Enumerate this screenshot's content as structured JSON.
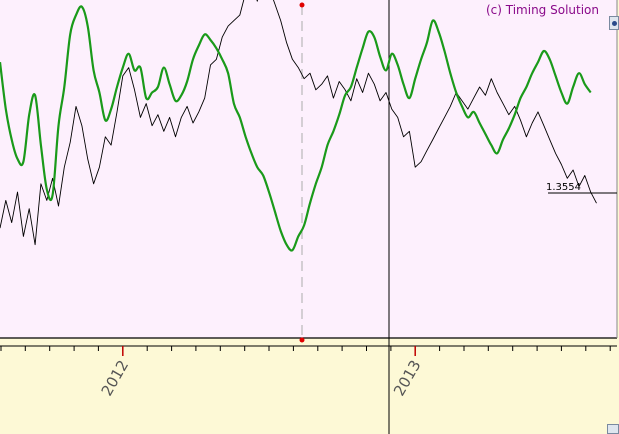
{
  "watermark": "(c) Timing Solution",
  "price_marker": "1.3554",
  "icons": [
    "settings-icon",
    "scroll-corner-icon"
  ],
  "colors": {
    "plot_background": "#fdf0fd",
    "axis_background": "#fdf9d6",
    "price_line": "#000000",
    "model_line": "#1a9a1a",
    "accent_marker": "#e00000"
  },
  "chart_data": {
    "type": "line",
    "title": "",
    "xlabel": "",
    "ylabel": "",
    "x_tick_labels": [
      "2012",
      "2013"
    ],
    "x_range": [
      2011.58,
      2013.69
    ],
    "grid": false,
    "legend": "none",
    "series": [
      {
        "key": "price",
        "points": [
          [
            2011.58,
            0.39
          ],
          [
            2011.6,
            0.49
          ],
          [
            2011.62,
            0.41
          ],
          [
            2011.64,
            0.52
          ],
          [
            2011.66,
            0.36
          ],
          [
            2011.68,
            0.46
          ],
          [
            2011.7,
            0.33
          ],
          [
            2011.72,
            0.55
          ],
          [
            2011.74,
            0.49
          ],
          [
            2011.76,
            0.57
          ],
          [
            2011.78,
            0.47
          ],
          [
            2011.8,
            0.61
          ],
          [
            2011.82,
            0.7
          ],
          [
            2011.84,
            0.83
          ],
          [
            2011.86,
            0.76
          ],
          [
            2011.88,
            0.64
          ],
          [
            2011.9,
            0.55
          ],
          [
            2011.92,
            0.61
          ],
          [
            2011.94,
            0.72
          ],
          [
            2011.96,
            0.69
          ],
          [
            2011.98,
            0.81
          ],
          [
            2012.0,
            0.94
          ],
          [
            2012.02,
            0.97
          ],
          [
            2012.04,
            0.89
          ],
          [
            2012.06,
            0.79
          ],
          [
            2012.08,
            0.84
          ],
          [
            2012.1,
            0.76
          ],
          [
            2012.12,
            0.8
          ],
          [
            2012.14,
            0.74
          ],
          [
            2012.16,
            0.79
          ],
          [
            2012.18,
            0.72
          ],
          [
            2012.2,
            0.79
          ],
          [
            2012.22,
            0.83
          ],
          [
            2012.24,
            0.77
          ],
          [
            2012.26,
            0.81
          ],
          [
            2012.28,
            0.86
          ],
          [
            2012.3,
            0.98
          ],
          [
            2012.32,
            1.0
          ],
          [
            2012.34,
            1.08
          ],
          [
            2012.36,
            1.12
          ],
          [
            2012.38,
            1.14
          ],
          [
            2012.4,
            1.16
          ],
          [
            2012.42,
            1.24
          ],
          [
            2012.44,
            1.28
          ],
          [
            2012.46,
            1.21
          ],
          [
            2012.48,
            1.31
          ],
          [
            2012.5,
            1.26
          ],
          [
            2012.52,
            1.2
          ],
          [
            2012.54,
            1.14
          ],
          [
            2012.56,
            1.06
          ],
          [
            2012.58,
            1.0
          ],
          [
            2012.6,
            0.97
          ],
          [
            2012.62,
            0.93
          ],
          [
            2012.64,
            0.95
          ],
          [
            2012.66,
            0.89
          ],
          [
            2012.68,
            0.91
          ],
          [
            2012.7,
            0.94
          ],
          [
            2012.72,
            0.86
          ],
          [
            2012.74,
            0.92
          ],
          [
            2012.76,
            0.89
          ],
          [
            2012.78,
            0.85
          ],
          [
            2012.8,
            0.93
          ],
          [
            2012.82,
            0.88
          ],
          [
            2012.84,
            0.95
          ],
          [
            2012.86,
            0.91
          ],
          [
            2012.88,
            0.85
          ],
          [
            2012.9,
            0.88
          ],
          [
            2012.92,
            0.82
          ],
          [
            2012.94,
            0.79
          ],
          [
            2012.96,
            0.72
          ],
          [
            2012.98,
            0.74
          ],
          [
            2013.0,
            0.61
          ],
          [
            2013.02,
            0.63
          ],
          [
            2013.04,
            0.67
          ],
          [
            2013.06,
            0.71
          ],
          [
            2013.08,
            0.75
          ],
          [
            2013.1,
            0.79
          ],
          [
            2013.12,
            0.83
          ],
          [
            2013.14,
            0.88
          ],
          [
            2013.16,
            0.85
          ],
          [
            2013.18,
            0.82
          ],
          [
            2013.2,
            0.86
          ],
          [
            2013.22,
            0.9
          ],
          [
            2013.24,
            0.87
          ],
          [
            2013.26,
            0.93
          ],
          [
            2013.28,
            0.88
          ],
          [
            2013.3,
            0.84
          ],
          [
            2013.32,
            0.8
          ],
          [
            2013.34,
            0.83
          ],
          [
            2013.36,
            0.78
          ],
          [
            2013.38,
            0.72
          ],
          [
            2013.4,
            0.77
          ],
          [
            2013.42,
            0.81
          ],
          [
            2013.44,
            0.76
          ],
          [
            2013.46,
            0.71
          ],
          [
            2013.48,
            0.66
          ],
          [
            2013.5,
            0.62
          ],
          [
            2013.52,
            0.57
          ],
          [
            2013.54,
            0.6
          ],
          [
            2013.56,
            0.54
          ],
          [
            2013.58,
            0.58
          ],
          [
            2013.6,
            0.52
          ],
          [
            2013.62,
            0.48
          ]
        ]
      },
      {
        "key": "model",
        "points": [
          [
            2011.58,
            0.99
          ],
          [
            2011.6,
            0.82
          ],
          [
            2011.62,
            0.71
          ],
          [
            2011.64,
            0.64
          ],
          [
            2011.66,
            0.63
          ],
          [
            2011.68,
            0.8
          ],
          [
            2011.7,
            0.87
          ],
          [
            2011.72,
            0.69
          ],
          [
            2011.74,
            0.53
          ],
          [
            2011.76,
            0.51
          ],
          [
            2011.78,
            0.76
          ],
          [
            2011.8,
            0.9
          ],
          [
            2011.82,
            1.09
          ],
          [
            2011.84,
            1.16
          ],
          [
            2011.86,
            1.19
          ],
          [
            2011.88,
            1.12
          ],
          [
            2011.9,
            0.96
          ],
          [
            2011.92,
            0.88
          ],
          [
            2011.94,
            0.78
          ],
          [
            2011.96,
            0.82
          ],
          [
            2011.98,
            0.9
          ],
          [
            2012.0,
            0.97
          ],
          [
            2012.02,
            1.02
          ],
          [
            2012.04,
            0.96
          ],
          [
            2012.06,
            0.97
          ],
          [
            2012.08,
            0.86
          ],
          [
            2012.1,
            0.88
          ],
          [
            2012.12,
            0.9
          ],
          [
            2012.14,
            0.97
          ],
          [
            2012.16,
            0.91
          ],
          [
            2012.18,
            0.85
          ],
          [
            2012.2,
            0.87
          ],
          [
            2012.22,
            0.92
          ],
          [
            2012.24,
            1.0
          ],
          [
            2012.26,
            1.05
          ],
          [
            2012.28,
            1.09
          ],
          [
            2012.3,
            1.07
          ],
          [
            2012.32,
            1.04
          ],
          [
            2012.34,
            1.0
          ],
          [
            2012.36,
            0.95
          ],
          [
            2012.38,
            0.84
          ],
          [
            2012.4,
            0.79
          ],
          [
            2012.42,
            0.72
          ],
          [
            2012.44,
            0.66
          ],
          [
            2012.46,
            0.61
          ],
          [
            2012.48,
            0.58
          ],
          [
            2012.5,
            0.52
          ],
          [
            2012.52,
            0.45
          ],
          [
            2012.54,
            0.38
          ],
          [
            2012.56,
            0.33
          ],
          [
            2012.58,
            0.31
          ],
          [
            2012.6,
            0.36
          ],
          [
            2012.62,
            0.4
          ],
          [
            2012.64,
            0.48
          ],
          [
            2012.66,
            0.55
          ],
          [
            2012.68,
            0.61
          ],
          [
            2012.7,
            0.69
          ],
          [
            2012.72,
            0.74
          ],
          [
            2012.74,
            0.8
          ],
          [
            2012.76,
            0.87
          ],
          [
            2012.78,
            0.9
          ],
          [
            2012.8,
            0.97
          ],
          [
            2012.82,
            1.04
          ],
          [
            2012.84,
            1.1
          ],
          [
            2012.86,
            1.08
          ],
          [
            2012.88,
            1.01
          ],
          [
            2012.9,
            0.96
          ],
          [
            2012.92,
            1.02
          ],
          [
            2012.94,
            0.98
          ],
          [
            2012.96,
            0.91
          ],
          [
            2012.98,
            0.86
          ],
          [
            2013.0,
            0.93
          ],
          [
            2013.02,
            1.0
          ],
          [
            2013.04,
            1.06
          ],
          [
            2013.06,
            1.14
          ],
          [
            2013.08,
            1.1
          ],
          [
            2013.1,
            1.03
          ],
          [
            2013.12,
            0.95
          ],
          [
            2013.14,
            0.88
          ],
          [
            2013.16,
            0.83
          ],
          [
            2013.18,
            0.79
          ],
          [
            2013.2,
            0.81
          ],
          [
            2013.22,
            0.77
          ],
          [
            2013.24,
            0.73
          ],
          [
            2013.26,
            0.69
          ],
          [
            2013.28,
            0.66
          ],
          [
            2013.3,
            0.71
          ],
          [
            2013.32,
            0.75
          ],
          [
            2013.34,
            0.8
          ],
          [
            2013.36,
            0.86
          ],
          [
            2013.38,
            0.9
          ],
          [
            2013.4,
            0.95
          ],
          [
            2013.42,
            0.99
          ],
          [
            2013.44,
            1.03
          ],
          [
            2013.46,
            1.0
          ],
          [
            2013.48,
            0.94
          ],
          [
            2013.5,
            0.88
          ],
          [
            2013.52,
            0.84
          ],
          [
            2013.54,
            0.9
          ],
          [
            2013.56,
            0.95
          ],
          [
            2013.58,
            0.91
          ],
          [
            2013.6,
            0.88
          ]
        ]
      }
    ]
  }
}
